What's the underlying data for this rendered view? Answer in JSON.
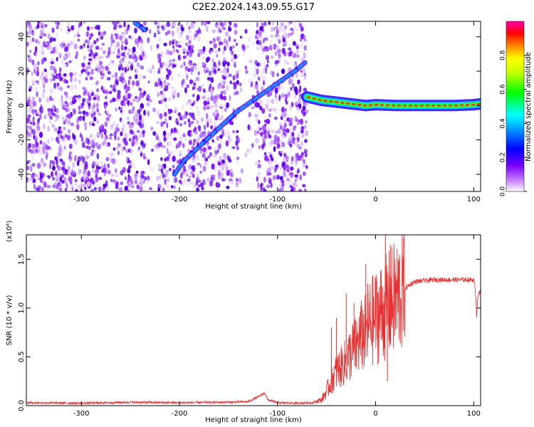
{
  "title": "C2E2.2024.143.09.55.G17",
  "chart_data": [
    {
      "type": "heatmap",
      "xlabel": "Height of straight line (km)",
      "ylabel": "Frequency (Hz)",
      "xlim": [
        -356,
        107
      ],
      "ylim": [
        -50,
        49
      ],
      "x_ticks": [
        -300,
        -200,
        -100,
        0,
        100
      ],
      "y_ticks": [
        -40,
        -20,
        0,
        20,
        40
      ],
      "colorbar": {
        "label": "Normalized spectral amplitude",
        "range": [
          0,
          1
        ],
        "ticks": [
          "0.0",
          "0.2",
          "0.4",
          "0.6",
          "0.8"
        ],
        "colors": [
          "#ffffff",
          "#8a00ff",
          "#0000ff",
          "#00ffff",
          "#00ff00",
          "#ffff00",
          "#ff8000",
          "#ff0000",
          "#ff00c0"
        ]
      },
      "noise_region_x": [
        -356,
        -70
      ],
      "features": [
        {
          "name": "",
          "kind": "streak",
          "x": [
            -205,
            -195,
            -180,
            -165,
            -150,
            -140,
            -130,
            -120,
            -110,
            -100,
            -90,
            -80,
            -72
          ],
          "y": [
            -40,
            -32,
            -24,
            -16,
            -8,
            -3,
            1,
            5,
            9,
            13,
            17,
            21,
            25
          ],
          "amplitude": 0.3
        },
        {
          "name": "",
          "kind": "line",
          "x": [
            -70,
            -55,
            -40,
            -25,
            -10,
            0,
            20,
            40,
            60,
            80,
            100,
            107
          ],
          "y": [
            5,
            3,
            2,
            1,
            0,
            0.5,
            0,
            0,
            0,
            0,
            0.5,
            1
          ],
          "amplitude": 0.85
        },
        {
          "name": "",
          "kind": "streak",
          "x": [
            -245,
            -235
          ],
          "y": [
            48,
            44
          ],
          "amplitude": 0.3
        }
      ]
    },
    {
      "type": "line",
      "xlabel": "Height of straight line (km)",
      "ylabel": "SNR (10 * v/v)",
      "y_multiplier": "(x10⁴)",
      "xlim": [
        -356,
        107
      ],
      "ylim": [
        0,
        17500
      ],
      "x_ticks": [
        -300,
        -200,
        -100,
        0,
        100
      ],
      "y_tick_labels": [
        [
          "0.0",
          0
        ],
        [
          "0.5",
          5000
        ],
        [
          "1.0",
          10000
        ],
        [
          "1.5",
          15000
        ]
      ],
      "color": "#e83030",
      "series": [
        {
          "x": [
            -356,
            -300,
            -250,
            -200,
            -150,
            -130,
            -118,
            -113,
            -110,
            -100,
            -80,
            -65,
            -55,
            -50,
            -45,
            -40,
            -35,
            -30,
            -25,
            -20,
            -15,
            -10,
            -5,
            0,
            5,
            10,
            15,
            20,
            25,
            30,
            35,
            40,
            50,
            60,
            70,
            80,
            90,
            100,
            102,
            103,
            104,
            107
          ],
          "y": [
            300,
            250,
            350,
            300,
            350,
            400,
            1000,
            1300,
            600,
            300,
            250,
            300,
            600,
            1500,
            2500,
            3500,
            4000,
            4500,
            5500,
            6000,
            7000,
            7500,
            8500,
            9000,
            9500,
            10000,
            10500,
            11000,
            11500,
            12000,
            12400,
            12700,
            12800,
            12900,
            12900,
            12900,
            12900,
            12900,
            11500,
            9000,
            11200,
            11700
          ]
        }
      ],
      "spikes": [
        [
          -30,
          11500
        ],
        [
          -22,
          10500
        ],
        [
          -10,
          14500
        ],
        [
          -8,
          12500
        ],
        [
          0,
          13000
        ],
        [
          10,
          17500
        ],
        [
          12,
          2500
        ],
        [
          15,
          16500
        ],
        [
          -45,
          8000
        ],
        [
          -40,
          9000
        ]
      ]
    }
  ]
}
